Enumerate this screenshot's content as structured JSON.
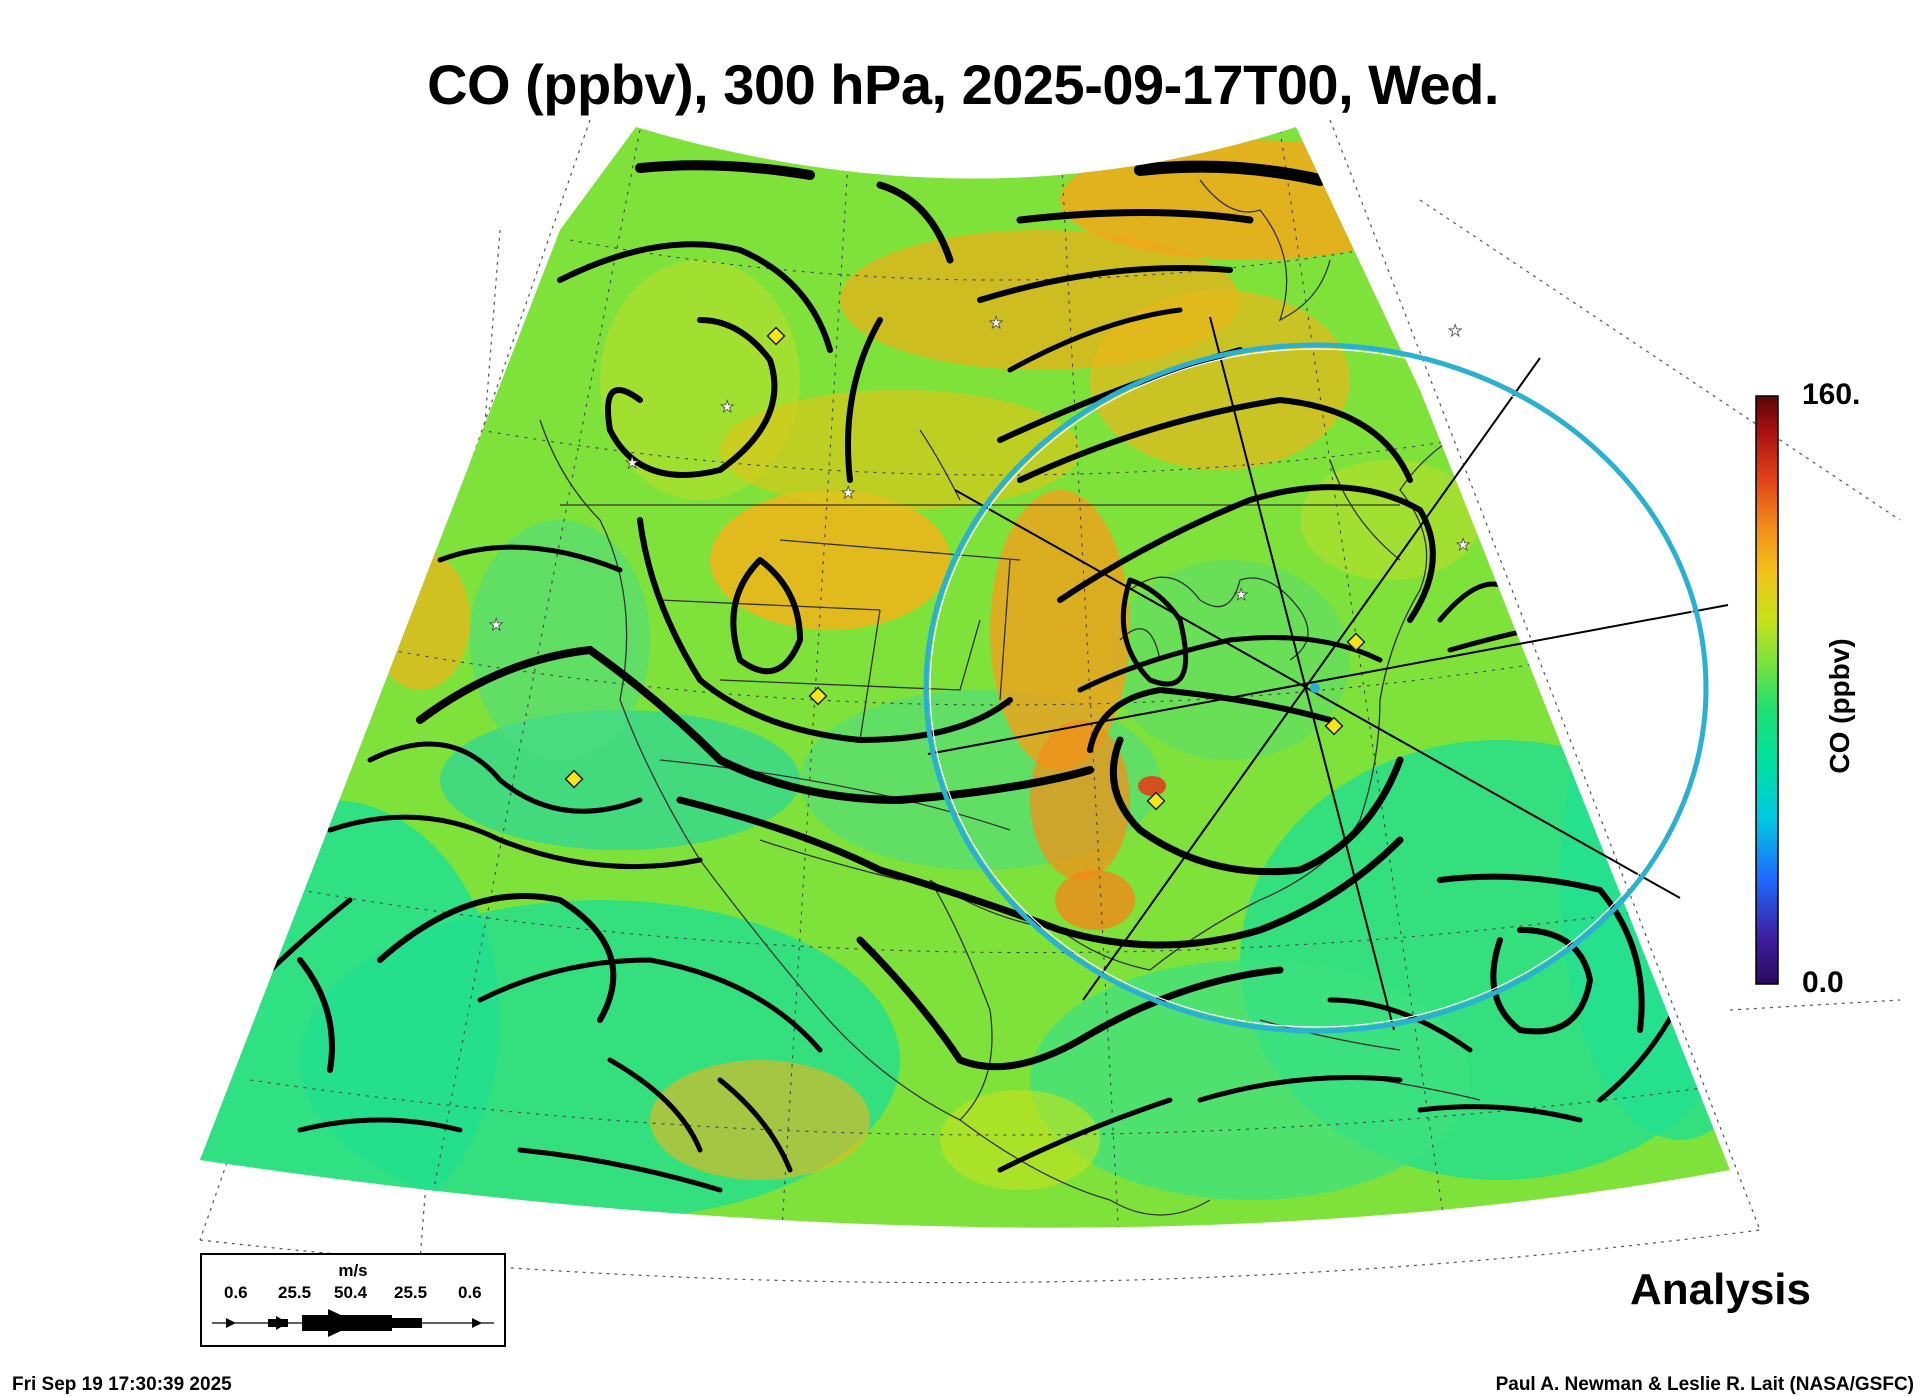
{
  "title": "CO (ppbv), 300 hPa, 2025-09-17T00, Wed.",
  "colorbar": {
    "label": "CO (ppbv)",
    "max_label": "160.",
    "min_label": "0.0",
    "colors": [
      "#2a0a5e",
      "#3d1fa0",
      "#1e6bff",
      "#00c8e0",
      "#00e0a0",
      "#22e070",
      "#7fe23a",
      "#c6e21a",
      "#f2c21a",
      "#f28a1a",
      "#e0401a",
      "#a81010",
      "#5a0505"
    ]
  },
  "wind_legend": {
    "unit": "m/s",
    "speeds": [
      "0.6",
      "25.5",
      "50.4",
      "25.5",
      "0.6"
    ]
  },
  "stamp": "Analysis",
  "footer": {
    "timestamp": "Fri Sep 19 17:30:39 2025",
    "credit": "Paul A. Newman & Leslie R. Lait (NASA/GSFC)"
  },
  "map": {
    "field_colors": {
      "background_green": "#7fe23a",
      "low": "#22e090",
      "high": "#f2b41a",
      "very_high": "#e0401a"
    },
    "range_ring_color": "#2ab0d0",
    "marker_color": "#f5e61a"
  }
}
